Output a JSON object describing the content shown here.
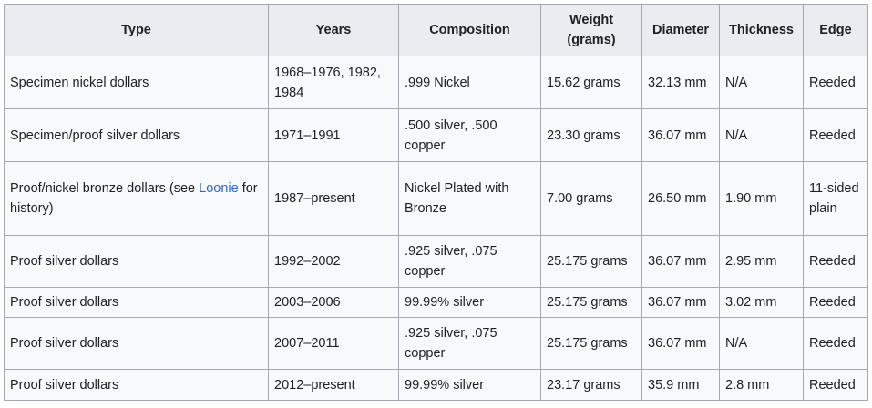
{
  "table": {
    "headers": [
      "Type",
      "Years",
      "Composition",
      "Weight (grams)",
      "Diameter",
      "Thickness",
      "Edge"
    ],
    "rows": [
      {
        "type": "Specimen nickel dollars",
        "years": "1968–1976, 1982, 1984",
        "composition": ".999 Nickel",
        "weight": "15.62 grams",
        "diameter": "32.13 mm",
        "thickness": "N/A",
        "edge": "Reeded"
      },
      {
        "type": "Specimen/proof silver dollars",
        "years": "1971–1991",
        "composition": ".500 silver, .500 copper",
        "weight": "23.30 grams",
        "diameter": "36.07 mm",
        "thickness": "N/A",
        "edge": "Reeded"
      },
      {
        "type_prefix": "Proof/nickel bronze dollars (see ",
        "type_link": "Loonie",
        "type_suffix": " for history)",
        "years": "1987–present",
        "composition": "Nickel Plated with Bronze",
        "weight": "7.00 grams",
        "diameter": "26.50 mm",
        "thickness": "1.90 mm",
        "edge": "11-sided plain"
      },
      {
        "type": "Proof silver dollars",
        "years": "1992–2002",
        "composition": ".925 silver, .075 copper",
        "weight": "25.175 grams",
        "diameter": "36.07 mm",
        "thickness": "2.95 mm",
        "edge": "Reeded"
      },
      {
        "type": "Proof silver dollars",
        "years": "2003–2006",
        "composition": "99.99% silver",
        "weight": "25.175 grams",
        "diameter": "36.07 mm",
        "thickness": "3.02 mm",
        "edge": "Reeded"
      },
      {
        "type": "Proof silver dollars",
        "years": "2007–2011",
        "composition": ".925 silver, .075 copper",
        "weight": "25.175 grams",
        "diameter": "36.07 mm",
        "thickness": "N/A",
        "edge": "Reeded"
      },
      {
        "type": "Proof silver dollars",
        "years": "2012–present",
        "composition": "99.99% silver",
        "weight": "23.17 grams",
        "diameter": "35.9 mm",
        "thickness": "2.8 mm",
        "edge": "Reeded"
      }
    ]
  },
  "colors": {
    "header_bg": "#eaecf0",
    "cell_bg": "#f8f9fa",
    "border": "#a2a9b1",
    "link": "#3366cc",
    "text": "#202122"
  }
}
